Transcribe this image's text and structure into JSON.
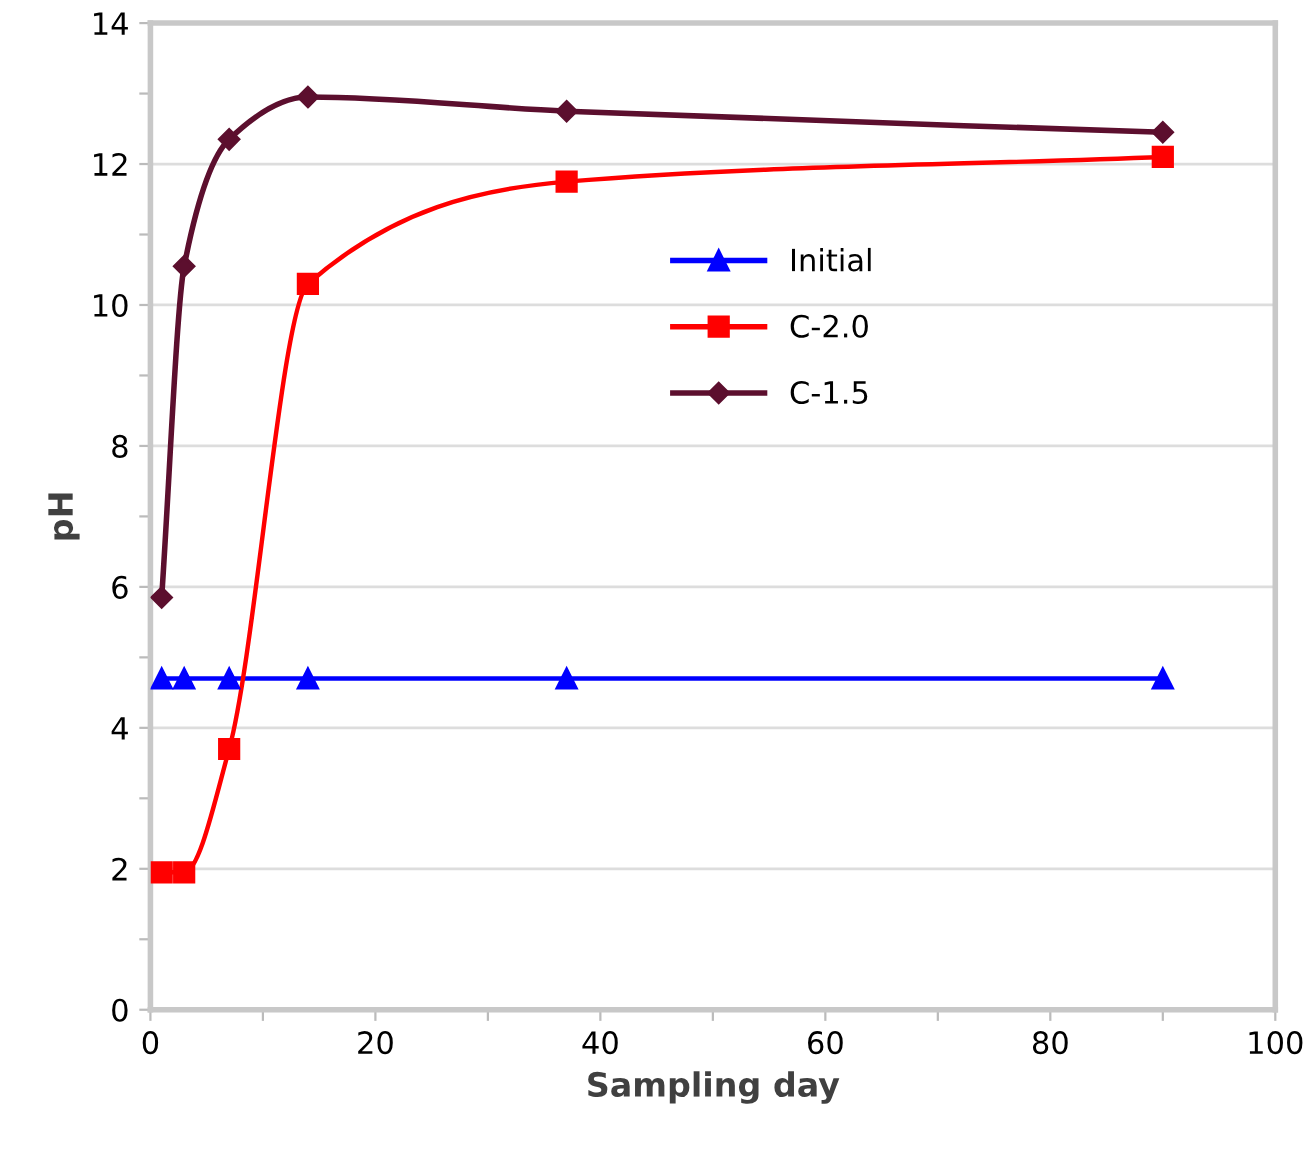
{
  "chart_data": {
    "type": "line",
    "xlabel": "Sampling day",
    "ylabel": "pH",
    "xlim": [
      0,
      100
    ],
    "ylim": [
      0,
      14
    ],
    "xticks": [
      0,
      {
        "value": 10,
        "label": null
      },
      20,
      {
        "value": 30,
        "label": null
      },
      40,
      {
        "value": 50,
        "label": null
      },
      60,
      {
        "value": 70,
        "label": null
      },
      80,
      {
        "value": 90,
        "label": null
      },
      100
    ],
    "yticks": [
      0,
      {
        "value": 1,
        "label": null
      },
      2,
      {
        "value": 3,
        "label": null
      },
      4,
      {
        "value": 5,
        "label": null
      },
      6,
      {
        "value": 7,
        "label": null
      },
      8,
      {
        "value": 9,
        "label": null
      },
      10,
      {
        "value": 11,
        "label": null
      },
      12,
      {
        "value": 13,
        "label": null
      },
      14
    ],
    "grid": "y",
    "legend": "right",
    "x": [
      1,
      3,
      7,
      14,
      37,
      90
    ],
    "series": [
      {
        "name": "Initial",
        "color": "#0000ff",
        "marker": "triangle",
        "values": [
          4.7,
          4.7,
          4.7,
          4.7,
          4.7,
          4.7
        ]
      },
      {
        "name": "C-2.0",
        "color": "#ff0000",
        "marker": "square",
        "values": [
          1.95,
          1.95,
          3.7,
          10.3,
          11.75,
          12.1
        ]
      },
      {
        "name": "C-1.5",
        "color": "#5c0f2e",
        "marker": "diamond",
        "values": [
          5.85,
          10.55,
          12.35,
          12.95,
          12.75,
          12.45
        ]
      }
    ]
  }
}
